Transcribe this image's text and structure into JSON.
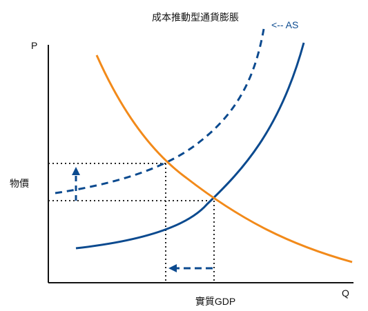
{
  "title": "成本推動型通貨膨脹",
  "axes": {
    "y_letter": "P",
    "x_letter": "Q",
    "y_label": "物價",
    "x_label": "實質GDP"
  },
  "shift_label": "<-- AS",
  "colors": {
    "demand": "#f28a1a",
    "supply": "#0b4a8f",
    "axis": "#111111",
    "guide": "#222222"
  }
}
